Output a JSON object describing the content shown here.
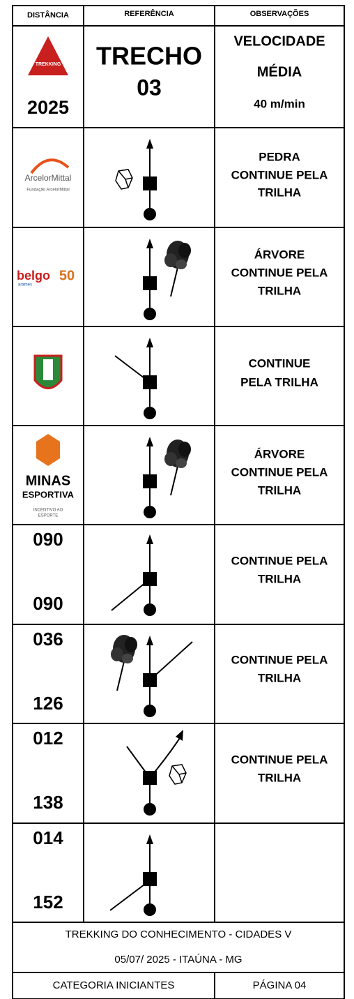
{
  "header": {
    "columns": [
      "DISTÂNCIA",
      "REFERÊNCIA",
      "OBSERVAÇÕES"
    ]
  },
  "intro": {
    "logo_text": "TREKKING",
    "year": "2025",
    "reference": [
      "TRECHO",
      "03"
    ],
    "observations": [
      "VELOCIDADE",
      "MÉDIA",
      "40 m/min"
    ]
  },
  "rows": [
    {
      "logo": [
        "ArcelorMittal",
        "Fundação ArcelorMittal"
      ],
      "observations": [
        "PEDRA",
        "CONTINUE PELA",
        "TRILHA"
      ]
    },
    {
      "logo": [
        "belgo",
        "50",
        "arames"
      ],
      "observations": [
        "ÁRVORE",
        "CONTINUE PELA",
        "TRILHA"
      ]
    },
    {
      "observations": [
        "CONTINUE",
        "PELA TRILHA"
      ]
    },
    {
      "logo": [
        "MINAS",
        "ESPORTIVA",
        "INCENTIVO AO",
        "ESPORTE"
      ],
      "observations": [
        "ÁRVORE",
        "CONTINUE PELA",
        "TRILHA"
      ]
    },
    {
      "distance": "090",
      "total": "090",
      "observations": [
        "CONTINUE PELA",
        "TRILHA"
      ]
    },
    {
      "distance": "036",
      "total": "126",
      "observations": [
        "CONTINUE PELA",
        "TRILHA"
      ]
    },
    {
      "distance": "012",
      "total": "138",
      "observations": [
        "CONTINUE PELA",
        "TRILHA"
      ]
    },
    {
      "distance": "014",
      "total": "152"
    }
  ],
  "footer": {
    "title": "TREKKING DO CONHECIMENTO - CIDADES V",
    "date": "05/07/ 2025 - ITAÚNA - MG",
    "category": "CATEGORIA INICIANTES",
    "page": "PÁGINA 04"
  }
}
